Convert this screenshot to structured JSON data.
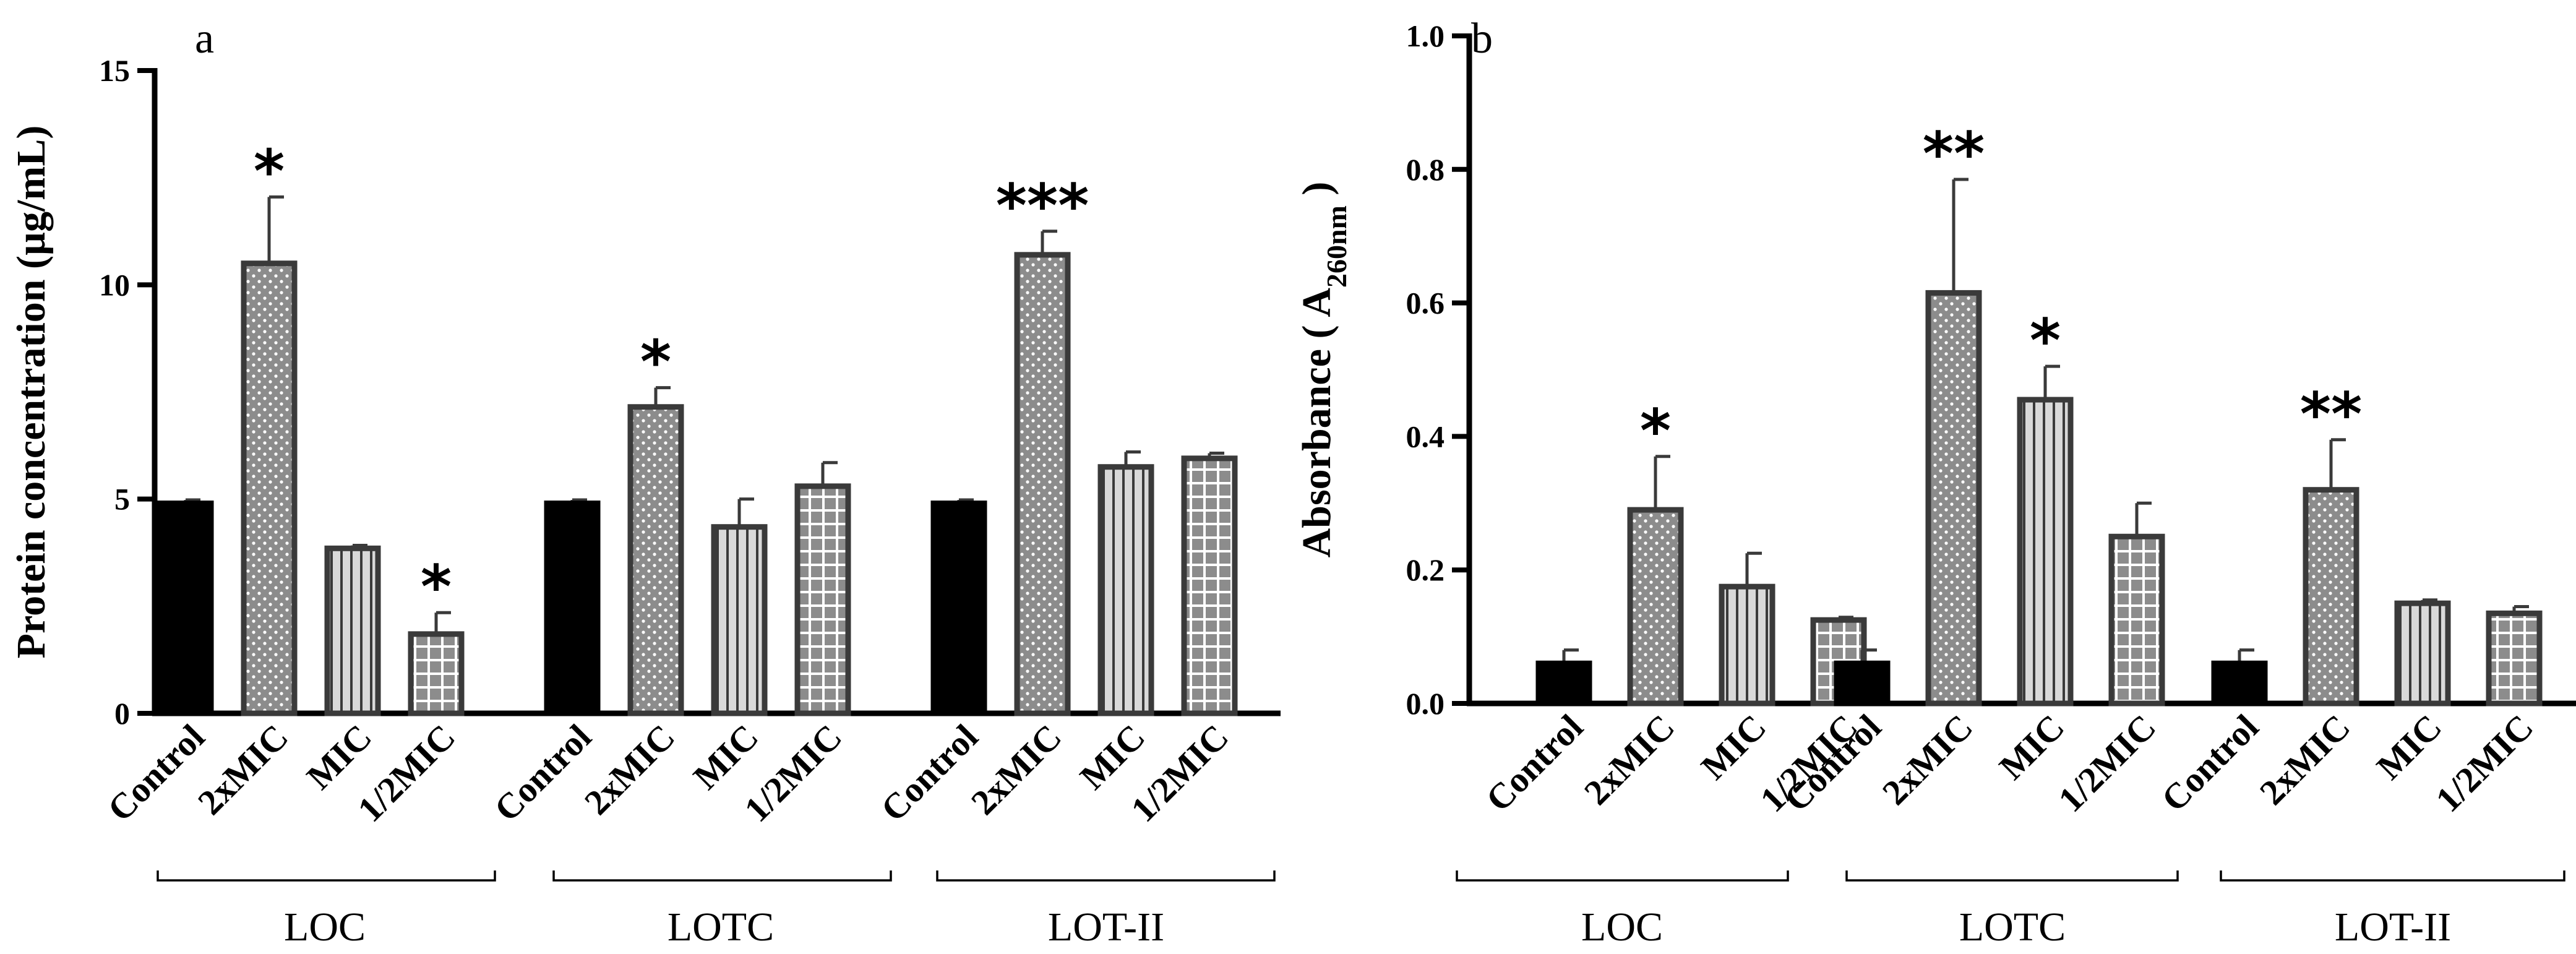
{
  "colors": {
    "axis": "#000000",
    "control_fill": "#000000",
    "bar_stroke": "#3a3a3a",
    "dots_fill": "#8c8c8c",
    "stripes_fill": "#d9d9d9",
    "grid_fill": "#8c8c8c"
  },
  "chart_data": [
    {
      "type": "bar",
      "panel_label": "a",
      "ylabel": "Protein concentration (µg/mL)",
      "ylim": [
        0,
        15
      ],
      "yticks": [
        0,
        5,
        10,
        15
      ],
      "ytick_labels": [
        "0",
        "5",
        "10",
        "15"
      ],
      "categories": [
        "Control",
        "2xMIC",
        "MIC",
        "1/2MIC"
      ],
      "groups": [
        {
          "name": "LOC",
          "values": [
            4.9,
            10.5,
            3.85,
            1.85
          ],
          "errors": [
            0.08,
            1.55,
            0.07,
            0.5
          ],
          "stars": [
            "",
            "*",
            "",
            "*"
          ]
        },
        {
          "name": "LOTC",
          "values": [
            4.9,
            7.15,
            4.35,
            5.3
          ],
          "errors": [
            0.08,
            0.45,
            0.65,
            0.55
          ],
          "stars": [
            "",
            "*",
            "",
            ""
          ]
        },
        {
          "name": "LOT-II",
          "values": [
            4.9,
            10.7,
            5.75,
            5.95
          ],
          "errors": [
            0.08,
            0.55,
            0.35,
            0.12
          ],
          "stars": [
            "",
            "***",
            "",
            ""
          ]
        }
      ]
    },
    {
      "type": "bar",
      "panel_label": "b",
      "ylabel": "Absorbance ( A",
      "ylabel_sub": "260nm",
      "ylabel_end": " )",
      "ylim": [
        0,
        1.0
      ],
      "yticks": [
        0,
        0.2,
        0.4,
        0.6,
        0.8,
        1.0
      ],
      "ytick_labels": [
        "0.0",
        "0.2",
        "0.4",
        "0.6",
        "0.8",
        "1.0"
      ],
      "categories": [
        "Control",
        "2xMIC",
        "MIC",
        "1/2MIC"
      ],
      "groups": [
        {
          "name": "LOC",
          "values": [
            0.06,
            0.29,
            0.175,
            0.125
          ],
          "errors": [
            0.02,
            0.08,
            0.05,
            0.004
          ],
          "stars": [
            "",
            "*",
            "",
            ""
          ]
        },
        {
          "name": "LOTC",
          "values": [
            0.06,
            0.615,
            0.455,
            0.25
          ],
          "errors": [
            0.02,
            0.17,
            0.05,
            0.05
          ],
          "stars": [
            "",
            "**",
            "*",
            ""
          ]
        },
        {
          "name": "LOT-II",
          "values": [
            0.06,
            0.32,
            0.15,
            0.135
          ],
          "errors": [
            0.02,
            0.075,
            0.005,
            0.01
          ],
          "stars": [
            "",
            "**",
            "",
            ""
          ]
        }
      ]
    }
  ]
}
